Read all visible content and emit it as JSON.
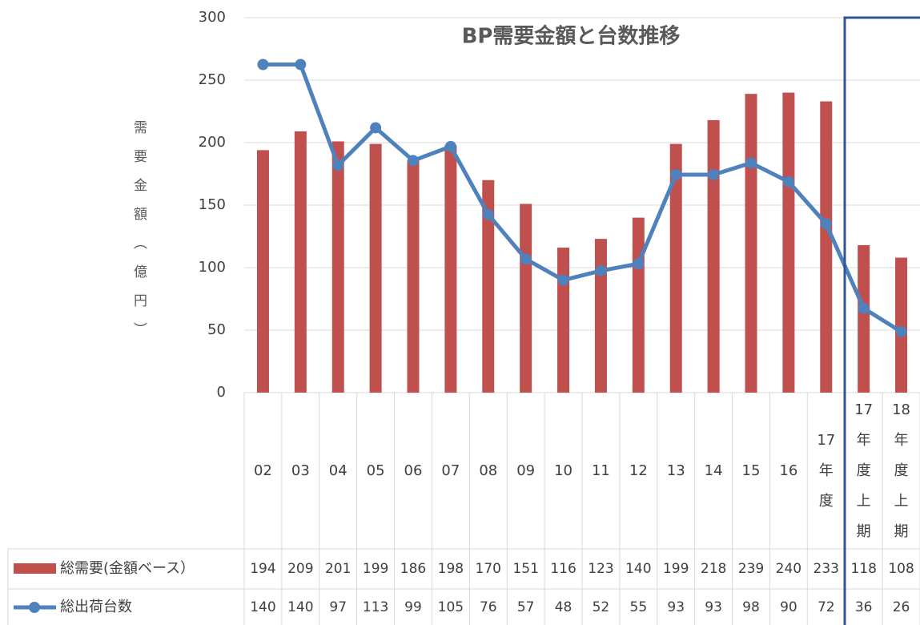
{
  "chart_data": {
    "type": "bar-line",
    "title": "BP需要金額と台数推移",
    "y_label": "需要金額（億円）",
    "categories": [
      "02",
      "03",
      "04",
      "05",
      "06",
      "07",
      "08",
      "09",
      "10",
      "11",
      "12",
      "13",
      "14",
      "15",
      "16",
      "17年度",
      "17年度上期",
      "18年度上期"
    ],
    "series": [
      {
        "name": "総需要(金額ベース）",
        "type": "bar",
        "color": "#c0504d",
        "values": [
          194,
          209,
          201,
          199,
          186,
          198,
          170,
          151,
          116,
          123,
          140,
          199,
          218,
          239,
          240,
          233,
          118,
          108
        ]
      },
      {
        "name": "総出荷台数",
        "type": "line",
        "color": "#4f81bd",
        "axis": "y2",
        "values": [
          140,
          140,
          97,
          113,
          99,
          105,
          76,
          57,
          48,
          52,
          55,
          93,
          93,
          98,
          90,
          72,
          36,
          26
        ]
      }
    ],
    "ylim": [
      0,
      300
    ],
    "yticks": [
      0,
      50,
      100,
      150,
      200,
      250,
      300
    ],
    "y2lim": [
      0,
      160
    ],
    "grid": true
  }
}
